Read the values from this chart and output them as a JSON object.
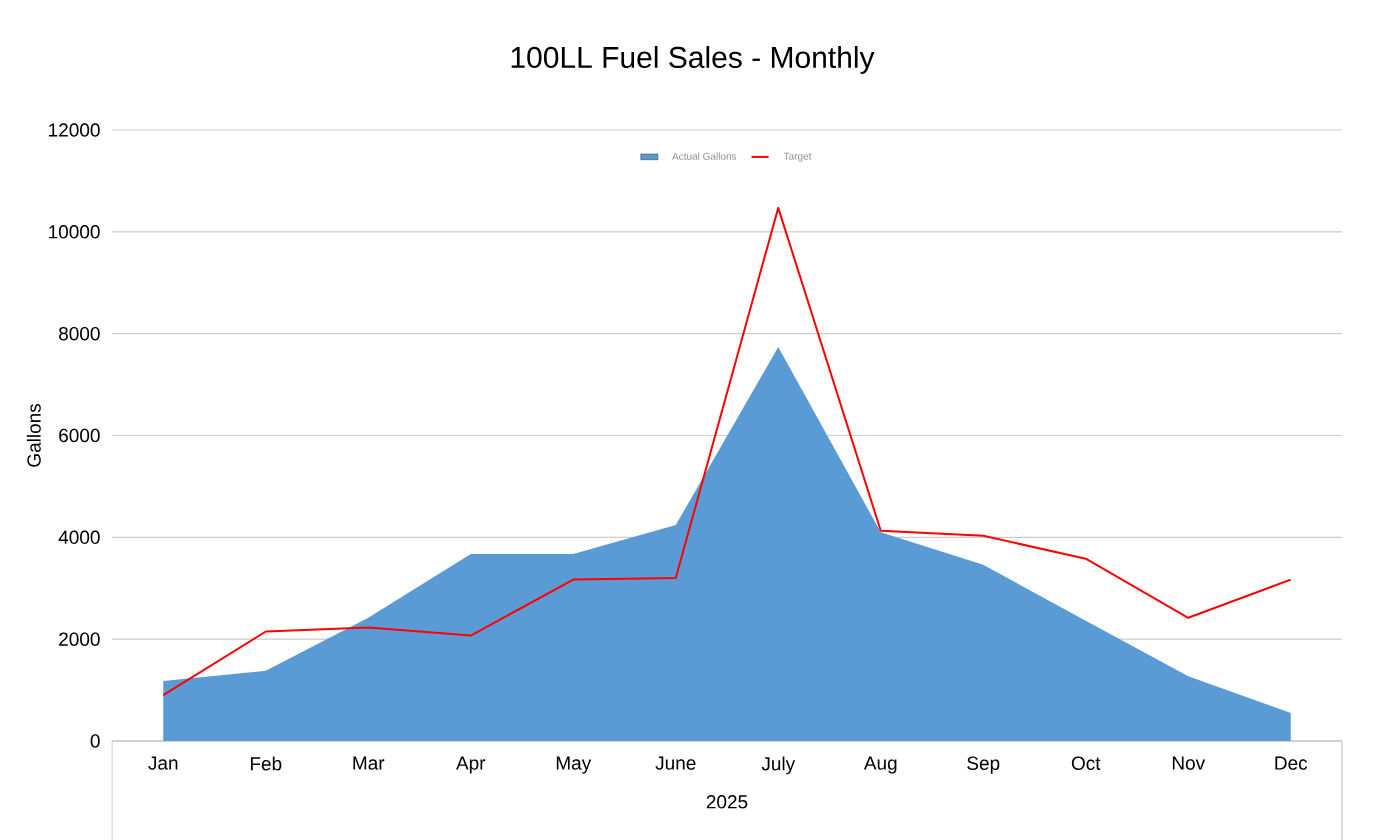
{
  "chart_data": {
    "type": "area",
    "title": "100LL Fuel Sales - Monthly",
    "xlabel": "2025",
    "ylabel": "Gallons",
    "categories": [
      "Jan",
      "Feb",
      "Mar",
      "Apr",
      "May",
      "June",
      "July",
      "Aug",
      "Sep",
      "Oct",
      "Nov",
      "Dec"
    ],
    "series": [
      {
        "name": "Actual Gallons",
        "color": "#5b9bd5",
        "values": [
          1180,
          1380,
          2420,
          3670,
          3670,
          4240,
          7740,
          4100,
          3460,
          2360,
          1270,
          550
        ]
      },
      {
        "name": "Target",
        "type": "line",
        "color": "#ff0000",
        "values": [
          900,
          2150,
          2230,
          2070,
          3170,
          3200,
          10470,
          4130,
          4030,
          3580,
          2420,
          3170
        ]
      }
    ],
    "ylim": [
      0,
      12000
    ],
    "yticks": [
      0,
      2000,
      4000,
      6000,
      8000,
      10000,
      12000
    ],
    "grid": "y",
    "legend": "top",
    "marker": "none",
    "line_style": "solid"
  }
}
